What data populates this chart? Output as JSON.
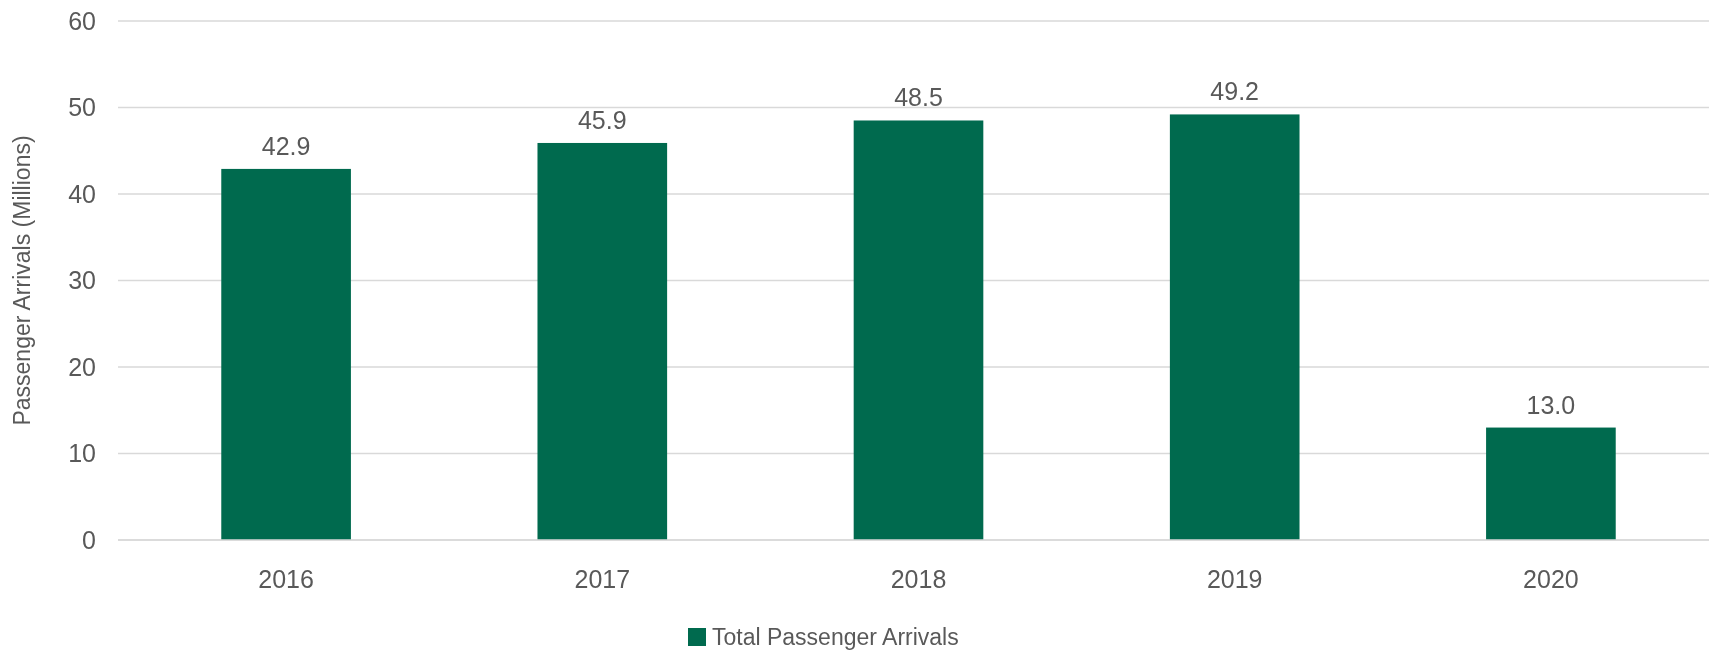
{
  "chart_data": {
    "type": "bar",
    "ylabel": "Passenger Arrivals (Millions)",
    "categories": [
      "2016",
      "2017",
      "2018",
      "2019",
      "2020"
    ],
    "series": [
      {
        "name": "Total Passenger Arrivals",
        "color": "#006a4e",
        "values": [
          42.9,
          45.9,
          48.5,
          49.2,
          13.0
        ]
      }
    ],
    "value_labels": [
      "42.9",
      "45.9",
      "48.5",
      "49.2",
      "13.0"
    ],
    "ylim": [
      0,
      60
    ],
    "yticks": [
      0,
      10,
      20,
      30,
      40,
      50,
      60
    ],
    "grid": "y",
    "legend": "bottom"
  }
}
